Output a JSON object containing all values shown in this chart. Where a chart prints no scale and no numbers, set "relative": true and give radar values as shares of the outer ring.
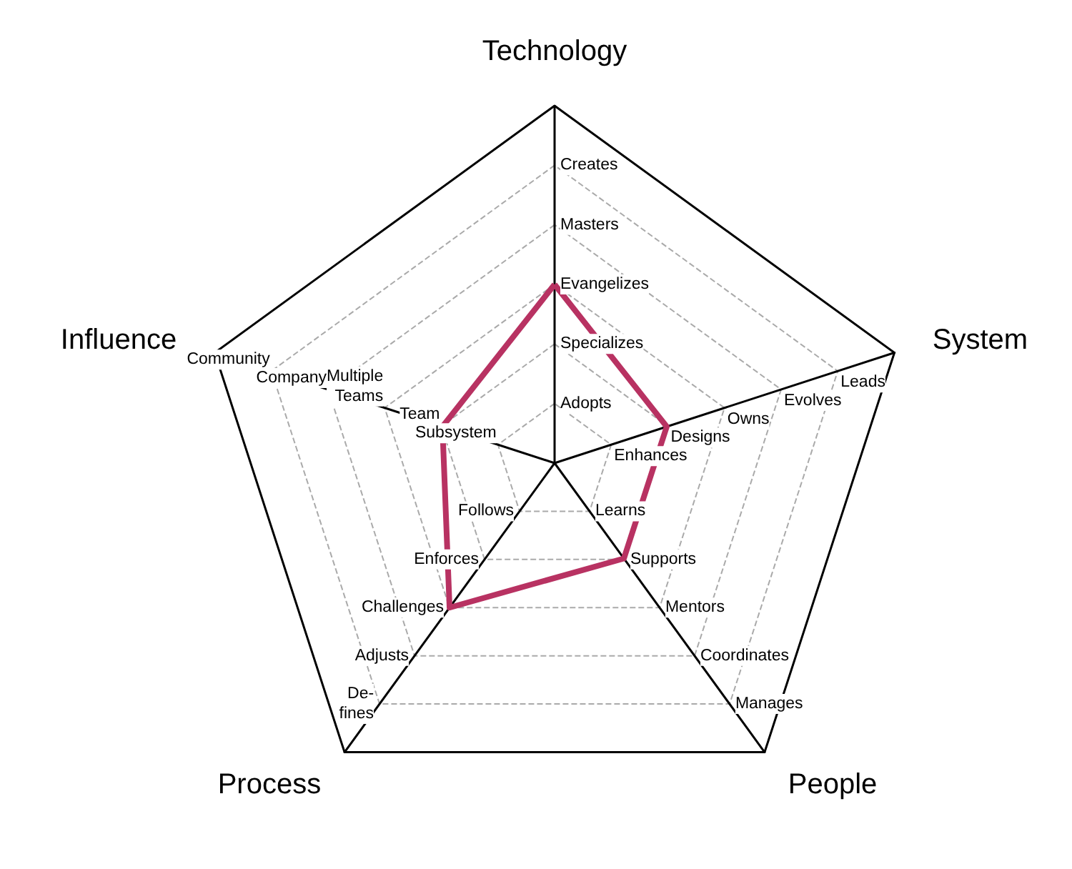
{
  "chart_data": {
    "type": "radar",
    "categories": [
      "Technology",
      "System",
      "People",
      "Process",
      "Influence"
    ],
    "series": [
      {
        "color": "#b83262",
        "values": [
          0.5,
          0.33,
          0.33,
          0.5,
          0.33
        ]
      }
    ],
    "relative": true,
    "grid": true,
    "marker": "none",
    "line_style": "solid",
    "annotations": [
      {
        "text": "Adopts",
        "x": "Technology"
      },
      {
        "text": "Specializes",
        "x": "Technology"
      },
      {
        "text": "Evangelizes",
        "x": "Technology"
      },
      {
        "text": "Masters",
        "x": "Technology"
      },
      {
        "text": "Creates",
        "x": "Technology"
      },
      {
        "text": "Enhances",
        "x": "System"
      },
      {
        "text": "Designs",
        "x": "System"
      },
      {
        "text": "Owns",
        "x": "System"
      },
      {
        "text": "Evolves",
        "x": "System"
      },
      {
        "text": "Leads",
        "x": "System"
      },
      {
        "text": "Learns",
        "x": "People"
      },
      {
        "text": "Supports",
        "x": "People"
      },
      {
        "text": "Mentors",
        "x": "People"
      },
      {
        "text": "Coordinates",
        "x": "People"
      },
      {
        "text": "Manages",
        "x": "People"
      },
      {
        "text": "Follows",
        "x": "Process"
      },
      {
        "text": "Enforces",
        "x": "Process"
      },
      {
        "text": "Challenges",
        "x": "Process"
      },
      {
        "text": "Adjusts",
        "x": "Process"
      },
      {
        "text": "De-\nfines",
        "x": "Process"
      },
      {
        "text": "Subsystem",
        "x": "Influence"
      },
      {
        "text": "Team",
        "x": "Influence"
      },
      {
        "text": "Multiple\nTeams",
        "x": "Influence"
      },
      {
        "text": "Company",
        "x": "Influence"
      },
      {
        "text": "Community",
        "x": "Influence"
      }
    ]
  }
}
